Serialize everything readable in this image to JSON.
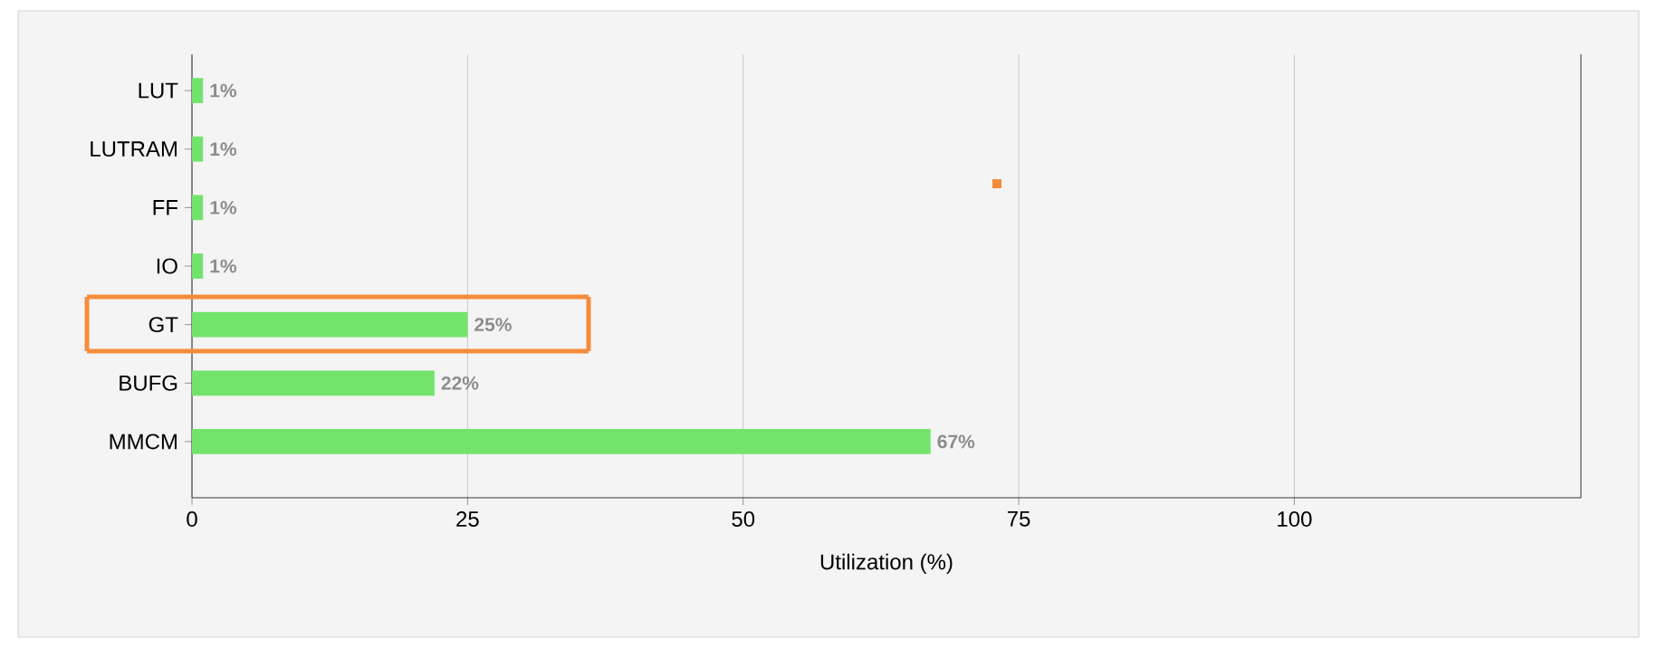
{
  "chart_data": {
    "type": "bar",
    "orientation": "horizontal",
    "xlabel": "Utilization (%)",
    "categories": [
      "LUT",
      "LUTRAM",
      "FF",
      "IO",
      "GT",
      "BUFG",
      "MMCM"
    ],
    "values": [
      1,
      1,
      1,
      1,
      25,
      22,
      67
    ],
    "value_labels": [
      "1%",
      "1%",
      "1%",
      "1%",
      "25%",
      "22%",
      "67%"
    ],
    "color": "#72e46c",
    "xlim": [
      0,
      126
    ],
    "xticks": [
      0,
      25,
      50,
      75,
      100
    ],
    "grid": "x"
  }
}
